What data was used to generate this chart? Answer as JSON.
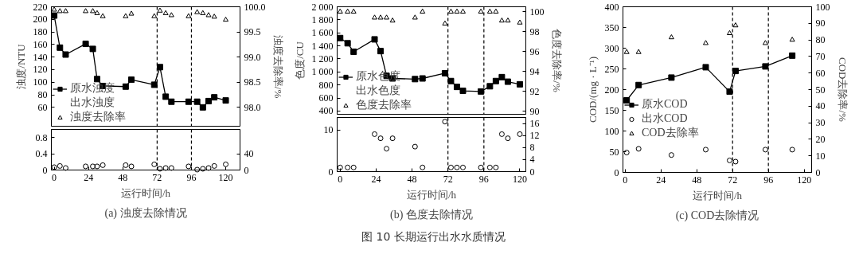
{
  "chart_data": [
    {
      "type": "line",
      "ylabel": "浊度/NTU",
      "y2label": "浊度去除率/%",
      "annotations": [
        "图 10 长期运行出水水质情况"
      ],
      "tick_labels": "y",
      "x": [
        0,
        4,
        8,
        22,
        27,
        30,
        34,
        50,
        54,
        70,
        74,
        78,
        82,
        94,
        100,
        104,
        108,
        112,
        120
      ],
      "xlim": [
        -2,
        130
      ],
      "ylim": [
        30,
        220
      ],
      "yticks": [
        60,
        80,
        100,
        120,
        140,
        160,
        180,
        200,
        220
      ],
      "y2lim": [
        97.625,
        100
      ],
      "y2ticks": [
        {
          "value": 98,
          "label": "98.0"
        },
        {
          "value": 98.5,
          "label": "98.5"
        },
        {
          "value": 99,
          "label": "99.0"
        },
        {
          "value": 99.5,
          "label": "99.5"
        },
        {
          "value": 100,
          "label": "100.0"
        }
      ],
      "legend": "bottom left",
      "ref_lines": [
        {
          "axis": "x",
          "value": 72,
          "color": "#000000",
          "line_style": "dashed"
        },
        {
          "axis": "x",
          "value": 96,
          "color": "#000000",
          "line_style": "dashed"
        }
      ],
      "series": [
        {
          "name": "原水浊度",
          "marker": "square",
          "color": "#000000",
          "values": [
            206,
            155,
            144,
            161,
            153,
            105,
            94,
            93,
            104,
            96,
            124,
            77,
            69,
            69,
            69,
            60,
            70,
            76,
            71
          ]
        },
        {
          "name": "浊度去除率",
          "type": "scatter",
          "marker": "triangle",
          "axis": "y2",
          "color": "#000000",
          "values": [
            99.94,
            99.91,
            99.91,
            99.91,
            99.91,
            99.87,
            99.81,
            99.81,
            99.86,
            99.81,
            99.92,
            99.87,
            99.83,
            99.81,
            99.89,
            99.87,
            99.83,
            99.8,
            99.74
          ]
        }
      ]
    },
    {
      "type": "scatter",
      "title": "(a) 浊度去除情况",
      "xlabel": "运行时间/h",
      "x": [
        0,
        4,
        8,
        22,
        27,
        30,
        34,
        50,
        54,
        70,
        74,
        78,
        82,
        94,
        100,
        104,
        108,
        112,
        120
      ],
      "xlim": [
        -2,
        130
      ],
      "xticks": [
        0,
        24,
        48,
        72,
        96,
        120
      ],
      "ylim": [
        0,
        1.0
      ],
      "yticks": [
        0,
        0.4,
        0.8
      ],
      "y2lim": [
        0,
        100
      ],
      "y2ticks": [
        0,
        40
      ],
      "ref_lines": [
        {
          "axis": "x",
          "value": 72,
          "color": "#000000",
          "line_style": "dashed"
        },
        {
          "axis": "x",
          "value": 96,
          "color": "#000000",
          "line_style": "dashed"
        }
      ],
      "series": [
        {
          "name": "出水浊度",
          "marker": "circle",
          "color": "#000000",
          "values": [
            0.07,
            0.1,
            0.05,
            0.09,
            0.09,
            0.09,
            0.12,
            0.12,
            0.09,
            0.14,
            0.03,
            0.05,
            0.05,
            0.09,
            0.01,
            0.03,
            0.05,
            0.1,
            0.14
          ]
        }
      ]
    },
    {
      "type": "line",
      "ylabel": "色度/CU",
      "y2label": "色度去除率/%",
      "tick_labels": "y",
      "x": [
        0,
        5,
        9,
        23,
        27,
        31,
        35,
        50,
        55,
        70,
        74,
        78,
        82,
        94,
        100,
        104,
        108,
        112,
        120
      ],
      "xlim": [
        -2,
        124
      ],
      "ylim": [
        350,
        2000
      ],
      "yticks": [
        400,
        600,
        800,
        {
          "value": 1000,
          "label": "1 000"
        },
        {
          "value": 1200,
          "label": "1 200"
        },
        {
          "value": 1400,
          "label": "1 400"
        },
        {
          "value": 1600,
          "label": "1 600"
        },
        {
          "value": 1800,
          "label": "1 800"
        },
        {
          "value": 2000,
          "label": "2 000"
        }
      ],
      "y2lim": [
        89.7,
        100.5
      ],
      "y2ticks": [
        90,
        92,
        94,
        96,
        98,
        100
      ],
      "legend": "bottom left",
      "ref_lines": [
        {
          "axis": "x",
          "value": 72,
          "color": "#000000",
          "line_style": "dashed"
        },
        {
          "axis": "x",
          "value": 96,
          "color": "#000000",
          "line_style": "dashed"
        }
      ],
      "series": [
        {
          "name": "原水色度",
          "marker": "square",
          "color": "#000000",
          "values": [
            1520,
            1440,
            1310,
            1500,
            1320,
            940,
            900,
            890,
            900,
            980,
            860,
            770,
            710,
            700,
            780,
            860,
            920,
            850,
            810
          ]
        },
        {
          "name": "色度去除率",
          "type": "scatter",
          "marker": "triangle",
          "axis": "y2",
          "color": "#000000",
          "values": [
            100,
            100,
            100,
            99.4,
            99.4,
            99.4,
            99.1,
            99.4,
            100,
            98.8,
            100,
            100,
            100,
            100,
            100,
            100,
            99.1,
            99.1,
            98.9
          ]
        }
      ]
    },
    {
      "type": "scatter",
      "title": "(b) 色度去除情况",
      "xlabel": "运行时间/h",
      "x": [
        0,
        5,
        9,
        23,
        27,
        31,
        35,
        50,
        55,
        70,
        74,
        78,
        82,
        94,
        100,
        104,
        108,
        112,
        120
      ],
      "xlim": [
        -2,
        124
      ],
      "xticks": [
        0,
        24,
        48,
        72,
        96,
        120
      ],
      "ylim": [
        0,
        13
      ],
      "yticks": [
        0,
        10
      ],
      "y2lim": [
        0,
        18
      ],
      "y2ticks": [
        0,
        4,
        8,
        12,
        16
      ],
      "ref_lines": [
        {
          "axis": "x",
          "value": 72,
          "color": "#000000",
          "line_style": "dashed"
        },
        {
          "axis": "x",
          "value": 96,
          "color": "#000000",
          "line_style": "dashed"
        }
      ],
      "series": [
        {
          "name": "出水色度",
          "marker": "circle",
          "color": "#000000",
          "values": [
            1,
            1,
            1,
            9,
            8,
            5.5,
            8,
            6,
            1,
            12,
            1,
            1,
            1,
            1,
            1,
            1,
            9,
            8,
            9
          ]
        }
      ]
    },
    {
      "type": "line",
      "title": "(c) COD去除情况",
      "xlabel": "运行时间/h",
      "ylabel": "COD/(mg · L⁻¹)",
      "y2label": "COD去除率/%",
      "x": [
        1,
        9,
        31,
        54,
        70,
        74,
        94,
        112
      ],
      "xlim": [
        -1.5,
        125
      ],
      "xticks": [
        0,
        24,
        48,
        72,
        96,
        120
      ],
      "ylim": [
        0,
        400
      ],
      "yticks": [
        0,
        50,
        100,
        150,
        200,
        250,
        300,
        350,
        400
      ],
      "y2lim": [
        0,
        100
      ],
      "y2ticks": [
        0,
        10,
        20,
        30,
        40,
        50,
        60,
        70,
        80,
        90,
        100
      ],
      "legend": "left",
      "ref_lines": [
        {
          "axis": "x",
          "value": 72,
          "color": "#000000",
          "line_style": "dashed"
        },
        {
          "axis": "x",
          "value": 96,
          "color": "#000000",
          "line_style": "dashed"
        }
      ],
      "series": [
        {
          "name": "原水COD",
          "marker": "square",
          "color": "#000000",
          "values": [
            174,
            211,
            229,
            254,
            195,
            245,
            256,
            282
          ]
        },
        {
          "name": "出水COD",
          "type": "scatter",
          "marker": "circle",
          "color": "#000000",
          "values": [
            48,
            57,
            42,
            55,
            29,
            26,
            55,
            55
          ]
        },
        {
          "name": "COD去除率",
          "type": "scatter",
          "marker": "triangle",
          "axis": "y2",
          "color": "#000000",
          "values": [
            72.6,
            72.6,
            81.5,
            78,
            84,
            88.7,
            78,
            80
          ]
        }
      ]
    }
  ]
}
